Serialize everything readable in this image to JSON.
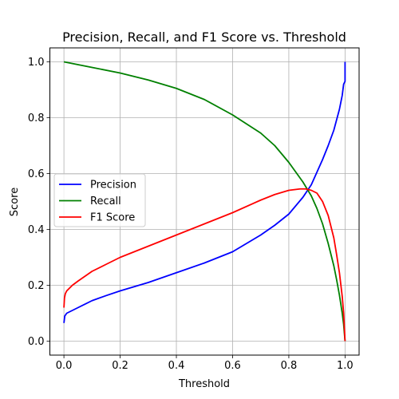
{
  "chart_data": {
    "type": "line",
    "title": "Precision, Recall, and F1 Score vs. Threshold",
    "xlabel": "Threshold",
    "ylabel": "Score",
    "xlim": [
      -0.05,
      1.05
    ],
    "ylim": [
      -0.05,
      1.05
    ],
    "xticks": [
      0.0,
      0.2,
      0.4,
      0.6,
      0.8,
      1.0
    ],
    "xtick_labels": [
      "0.0",
      "0.2",
      "0.4",
      "0.6",
      "0.8",
      "1.0"
    ],
    "yticks": [
      0.0,
      0.2,
      0.4,
      0.6,
      0.8,
      1.0
    ],
    "ytick_labels": [
      "0.0",
      "0.2",
      "0.4",
      "0.6",
      "0.8",
      "1.0"
    ],
    "grid": true,
    "legend_position": "center-left",
    "series": [
      {
        "name": "Precision",
        "color": "#0000ff",
        "x": [
          0.0,
          0.003,
          0.01,
          0.05,
          0.1,
          0.15,
          0.2,
          0.3,
          0.4,
          0.5,
          0.6,
          0.7,
          0.75,
          0.8,
          0.85,
          0.88,
          0.9,
          0.92,
          0.94,
          0.96,
          0.98,
          0.99,
          0.995,
          1.0,
          1.0
        ],
        "y": [
          0.065,
          0.09,
          0.1,
          0.12,
          0.145,
          0.163,
          0.18,
          0.21,
          0.245,
          0.28,
          0.32,
          0.38,
          0.415,
          0.455,
          0.515,
          0.56,
          0.605,
          0.65,
          0.7,
          0.755,
          0.83,
          0.88,
          0.92,
          0.93,
          1.0
        ]
      },
      {
        "name": "Recall",
        "color": "#008000",
        "x": [
          0.0,
          0.05,
          0.1,
          0.2,
          0.3,
          0.4,
          0.5,
          0.6,
          0.7,
          0.75,
          0.8,
          0.85,
          0.88,
          0.9,
          0.92,
          0.94,
          0.96,
          0.97,
          0.98,
          0.99,
          0.995,
          1.0
        ],
        "y": [
          1.0,
          0.99,
          0.98,
          0.96,
          0.935,
          0.905,
          0.865,
          0.81,
          0.745,
          0.7,
          0.64,
          0.57,
          0.52,
          0.475,
          0.42,
          0.35,
          0.27,
          0.22,
          0.165,
          0.1,
          0.06,
          0.0
        ]
      },
      {
        "name": "F1 Score",
        "color": "#ff0000",
        "x": [
          0.0,
          0.002,
          0.005,
          0.01,
          0.03,
          0.05,
          0.1,
          0.15,
          0.2,
          0.3,
          0.4,
          0.5,
          0.6,
          0.7,
          0.75,
          0.8,
          0.84,
          0.86,
          0.88,
          0.9,
          0.92,
          0.94,
          0.96,
          0.97,
          0.98,
          0.99,
          0.995,
          1.0
        ],
        "y": [
          0.12,
          0.155,
          0.17,
          0.18,
          0.2,
          0.215,
          0.25,
          0.275,
          0.3,
          0.34,
          0.38,
          0.42,
          0.46,
          0.505,
          0.525,
          0.54,
          0.545,
          0.545,
          0.54,
          0.53,
          0.5,
          0.45,
          0.37,
          0.31,
          0.245,
          0.16,
          0.1,
          0.0
        ]
      }
    ]
  }
}
